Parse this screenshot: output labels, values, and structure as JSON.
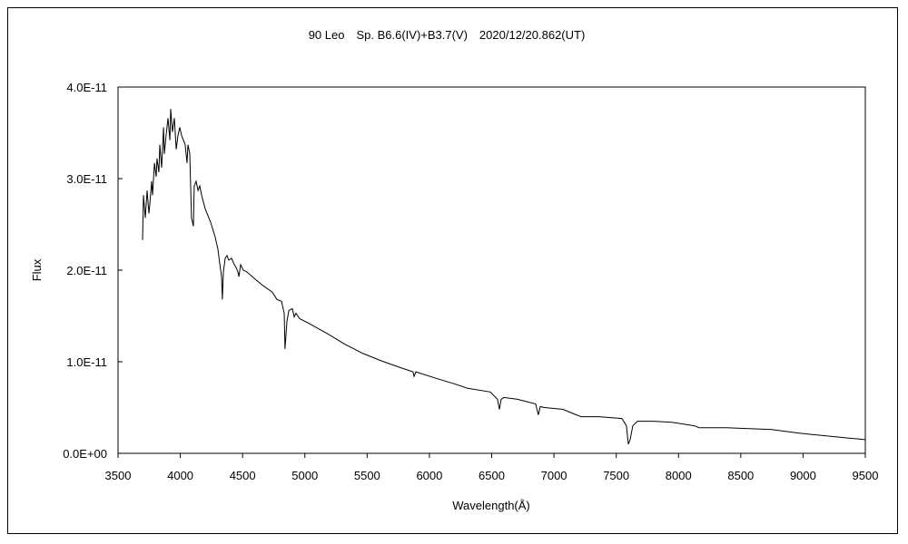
{
  "chart_data": {
    "type": "line",
    "title": "90 Leo　Sp. B6.6(IV)+B3.7(V)　2020/12/20.862(UT)",
    "xlabel": "Wavelength(Å)",
    "ylabel": "Flux",
    "xlim": [
      3500,
      9500
    ],
    "ylim": [
      0,
      4e-11
    ],
    "xticks": [
      "3500",
      "4000",
      "4500",
      "5000",
      "5500",
      "6000",
      "6500",
      "7000",
      "7500",
      "8000",
      "8500",
      "9000",
      "9500"
    ],
    "xtick_values": [
      3500,
      4000,
      4500,
      5000,
      5500,
      6000,
      6500,
      7000,
      7500,
      8000,
      8500,
      9000,
      9500
    ],
    "yticks": [
      "0.0E+00",
      "1.0E-11",
      "2.0E-11",
      "3.0E-11",
      "4.0E-11"
    ],
    "ytick_values": [
      0,
      1e-11,
      2e-11,
      3e-11,
      4e-11
    ],
    "grid": false,
    "legend": "none",
    "series": [
      {
        "name": "Flux",
        "color": "#000000",
        "x": [
          3697,
          3704,
          3719,
          3733,
          3748,
          3755,
          3770,
          3777,
          3792,
          3806,
          3813,
          3828,
          3835,
          3850,
          3865,
          3872,
          3886,
          3901,
          3916,
          3923,
          3937,
          3952,
          3967,
          3981,
          3996,
          4010,
          4025,
          4039,
          4054,
          4061,
          4076,
          4090,
          4105,
          4112,
          4127,
          4142,
          4156,
          4171,
          4200,
          4244,
          4280,
          4302,
          4316,
          4331,
          4338,
          4346,
          4360,
          4375,
          4389,
          4411,
          4433,
          4448,
          4462,
          4470,
          4484,
          4506,
          4535,
          4594,
          4666,
          4739,
          4776,
          4812,
          4834,
          4841,
          4856,
          4871,
          4900,
          4914,
          4929,
          4958,
          5031,
          5177,
          5323,
          5468,
          5614,
          5760,
          5869,
          5877,
          5891,
          6052,
          6197,
          6307,
          6489,
          6547,
          6562,
          6576,
          6598,
          6708,
          6853,
          6875,
          6890,
          6926,
          7072,
          7181,
          7218,
          7364,
          7546,
          7582,
          7597,
          7612,
          7633,
          7670,
          7801,
          7947,
          8129,
          8166,
          8384,
          8749,
          8968,
          9113,
          9332,
          9500
        ],
        "y": [
          2.33e-11,
          2.82e-11,
          2.57e-11,
          2.87e-11,
          2.62e-11,
          2.72e-11,
          2.97e-11,
          2.82e-11,
          3.17e-11,
          3.02e-11,
          3.22e-11,
          3.07e-11,
          3.37e-11,
          3.12e-11,
          3.56e-11,
          3.27e-11,
          3.47e-11,
          3.66e-11,
          3.42e-11,
          3.76e-11,
          3.51e-11,
          3.66e-11,
          3.32e-11,
          3.47e-11,
          3.56e-11,
          3.47e-11,
          3.42e-11,
          3.37e-11,
          3.17e-11,
          3.37e-11,
          3.27e-11,
          2.57e-11,
          2.48e-11,
          2.92e-11,
          2.97e-11,
          2.87e-11,
          2.92e-11,
          2.82e-11,
          2.67e-11,
          2.52e-11,
          2.36e-11,
          2.23e-11,
          2.08e-11,
          1.93e-11,
          1.68e-11,
          1.98e-11,
          2.13e-11,
          2.16e-11,
          2.11e-11,
          2.13e-11,
          2.06e-11,
          2.03e-11,
          1.98e-11,
          1.93e-11,
          2.06e-11,
          2e-11,
          1.98e-11,
          1.91e-11,
          1.83e-11,
          1.76e-11,
          1.68e-11,
          1.66e-11,
          1.53e-11,
          1.14e-11,
          1.44e-11,
          1.56e-11,
          1.58e-11,
          1.49e-11,
          1.53e-11,
          1.47e-11,
          1.42e-11,
          1.31e-11,
          1.19e-11,
          1.09e-11,
          1.01e-11,
          9.4e-12,
          8.9e-12,
          8.4e-12,
          8.9e-12,
          8.2e-12,
          7.6e-12,
          7.1e-12,
          6.7e-12,
          5.9e-12,
          4.8e-12,
          5.9e-12,
          6.1e-12,
          5.9e-12,
          5.4e-12,
          4.2e-12,
          5.1e-12,
          5e-12,
          4.8e-12,
          4.2e-12,
          4e-12,
          4e-12,
          3.8e-12,
          3e-12,
          1e-12,
          1.5e-12,
          3e-12,
          3.5e-12,
          3.5e-12,
          3.4e-12,
          3e-12,
          2.8e-12,
          2.8e-12,
          2.6e-12,
          2.2e-12,
          2e-12,
          1.7e-12,
          1.5e-12
        ]
      }
    ]
  }
}
